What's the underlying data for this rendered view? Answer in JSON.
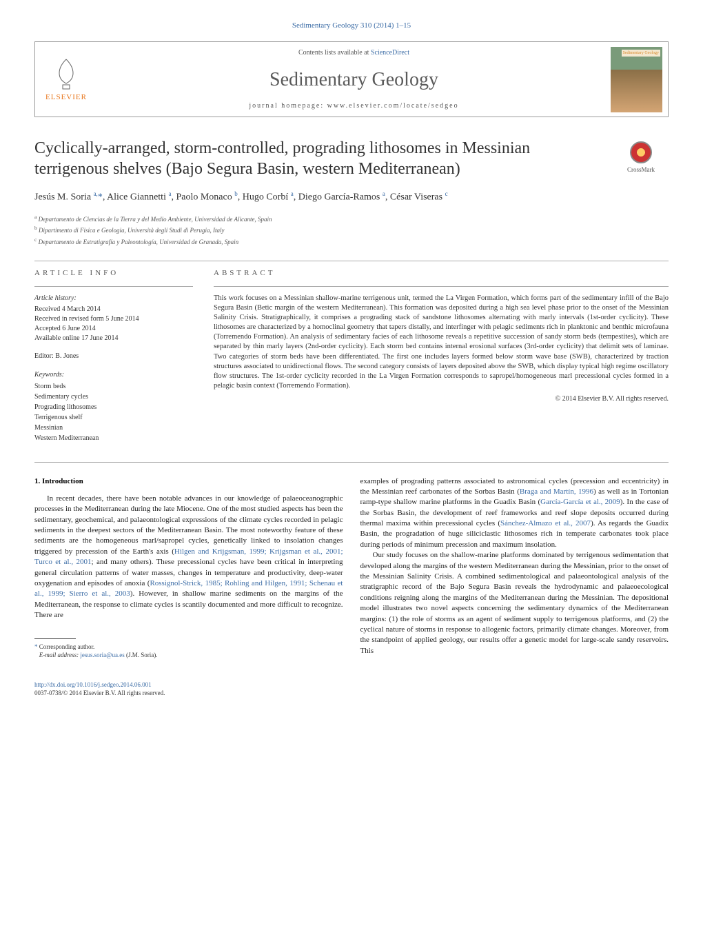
{
  "top_citation": "Sedimentary Geology 310 (2014) 1–15",
  "header": {
    "elsevier": "ELSEVIER",
    "contents_prefix": "Contents lists available at ",
    "contents_link": "ScienceDirect",
    "journal_name": "Sedimentary Geology",
    "homepage": "journal homepage: www.elsevier.com/locate/sedgeo",
    "cover_label": "Sedimentary Geology"
  },
  "crossmark": "CrossMark",
  "article": {
    "title": "Cyclically-arranged, storm-controlled, prograding lithosomes in Messinian terrigenous shelves (Bajo Segura Basin, western Mediterranean)",
    "authors_html": "Jesús M. Soria <sup>a,</sup><span class=\"author-asterisk\">*</span>, Alice Giannetti <sup>a</sup>, Paolo Monaco <sup>b</sup>, Hugo Corbí <sup>a</sup>, Diego García-Ramos <sup>a</sup>, César Viseras <sup>c</sup>",
    "affiliations": [
      {
        "sup": "a",
        "text": "Departamento de Ciencias de la Tierra y del Medio Ambiente, Universidad de Alicante, Spain"
      },
      {
        "sup": "b",
        "text": "Dipartimento di Fisica e Geologia, Università degli Studi di Perugia, Italy"
      },
      {
        "sup": "c",
        "text": "Departamento de Estratigrafía y Paleontología, Universidad de Granada, Spain"
      }
    ]
  },
  "info": {
    "header": "article info",
    "history_head": "Article history:",
    "history": [
      "Received 4 March 2014",
      "Received in revised form 5 June 2014",
      "Accepted 6 June 2014",
      "Available online 17 June 2014"
    ],
    "editor": "Editor: B. Jones",
    "keywords_head": "Keywords:",
    "keywords": [
      "Storm beds",
      "Sedimentary cycles",
      "Prograding lithosomes",
      "Terrigenous shelf",
      "Messinian",
      "Western Mediterranean"
    ]
  },
  "abstract": {
    "header": "abstract",
    "text": "This work focuses on a Messinian shallow-marine terrigenous unit, termed the La Virgen Formation, which forms part of the sedimentary infill of the Bajo Segura Basin (Betic margin of the western Mediterranean). This formation was deposited during a high sea level phase prior to the onset of the Messinian Salinity Crisis. Stratigraphically, it comprises a prograding stack of sandstone lithosomes alternating with marly intervals (1st-order cyclicity). These lithosomes are characterized by a homoclinal geometry that tapers distally, and interfinger with pelagic sediments rich in planktonic and benthic microfauna (Torremendo Formation). An analysis of sedimentary facies of each lithosome reveals a repetitive succession of sandy storm beds (tempestites), which are separated by thin marly layers (2nd-order cyclicity). Each storm bed contains internal erosional surfaces (3rd-order cyclicity) that delimit sets of laminae. Two categories of storm beds have been differentiated. The first one includes layers formed below storm wave base (SWB), characterized by traction structures associated to unidirectional flows. The second category consists of layers deposited above the SWB, which display typical high regime oscillatory flow structures. The 1st-order cyclicity recorded in the La Virgen Formation corresponds to sapropel/homogeneous marl precessional cycles formed in a pelagic basin context (Torremendo Formation).",
    "copyright": "© 2014 Elsevier B.V. All rights reserved."
  },
  "body": {
    "section_head": "1. Introduction",
    "col1_para": "In recent decades, there have been notable advances in our knowledge of palaeoceanographic processes in the Mediterranean during the late Miocene. One of the most studied aspects has been the sedimentary, geochemical, and palaeontological expressions of the climate cycles recorded in pelagic sediments in the deepest sectors of the Mediterranean Basin. The most noteworthy feature of these sediments are the homogeneous marl/sapropel cycles, genetically linked to insolation changes triggered by precession of the Earth's axis (<a>Hilgen and Krijgsman, 1999; Krijgsman et al., 2001; Turco et al., 2001</a>; and many others). These precessional cycles have been critical in interpreting general circulation patterns of water masses, changes in temperature and productivity, deep-water oxygenation and episodes of anoxia (<a>Rossignol-Strick, 1985; Rohling and Hilgen, 1991; Schenau et al., 1999; Sierro et al., 2003</a>). However, in shallow marine sediments on the margins of the Mediterranean, the response to climate cycles is scantily documented and more difficult to recognize. There are",
    "col2_para1": "examples of prograding patterns associated to astronomical cycles (precession and eccentricity) in the Messinian reef carbonates of the Sorbas Basin (<a>Braga and Martín, 1996</a>) as well as in Tortonian ramp-type shallow marine platforms in the Guadix Basin (<a>García-García et al., 2009</a>). In the case of the Sorbas Basin, the development of reef frameworks and reef slope deposits occurred during thermal maxima within precessional cycles (<a>Sánchez-Almazo et al., 2007</a>). As regards the Guadix Basin, the progradation of huge siliciclastic lithosomes rich in temperate carbonates took place during periods of minimum precession and maximum insolation.",
    "col2_para2": "Our study focuses on the shallow-marine platforms dominated by terrigenous sedimentation that developed along the margins of the western Mediterranean during the Messinian, prior to the onset of the Messinian Salinity Crisis. A combined sedimentological and palaeontological analysis of the stratigraphic record of the Bajo Segura Basin reveals the hydrodynamic and palaeoecological conditions reigning along the margins of the Mediterranean during the Messinian. The depositional model illustrates two novel aspects concerning the sedimentary dynamics of the Mediterranean margins: (1) the role of storms as an agent of sediment supply to terrigenous platforms, and (2) the cyclical nature of storms in response to allogenic factors, primarily climate changes. Moreover, from the standpoint of applied geology, our results offer a genetic model for large-scale sandy reservoirs. This"
  },
  "footnote": {
    "corresponding": "Corresponding author.",
    "email_label": "E-mail address:",
    "email": "jesus.soria@ua.es",
    "email_name": "(J.M. Soria)."
  },
  "footer": {
    "doi": "http://dx.doi.org/10.1016/j.sedgeo.2014.06.001",
    "issn": "0037-0738/© 2014 Elsevier B.V. All rights reserved."
  },
  "colors": {
    "link": "#3a6ba5",
    "elsevier_orange": "#e8751a",
    "text": "#333333",
    "border": "#999999"
  }
}
